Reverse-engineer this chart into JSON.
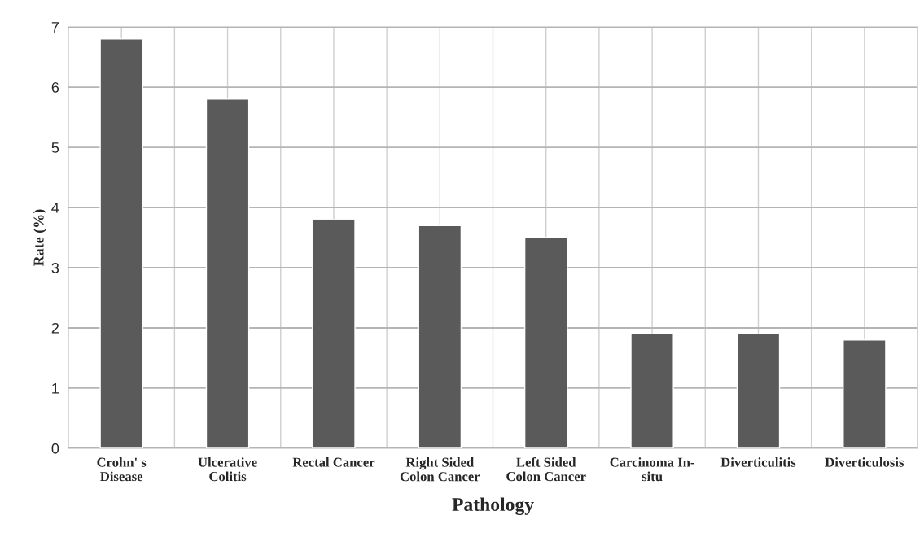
{
  "chart_data": {
    "type": "bar",
    "xlabel": "Pathology",
    "ylabel": "Rate (%)",
    "categories": [
      "Crohn' s\nDisease",
      "Ulcerative\nColitis",
      "Rectal Cancer",
      "Right Sided\nColon Cancer",
      "Left Sided\nColon Cancer",
      "Carcinoma In-\nsitu",
      "Diverticulitis",
      "Diverticulosis"
    ],
    "values": [
      6.8,
      5.8,
      3.8,
      3.7,
      3.5,
      1.9,
      1.9,
      1.8
    ],
    "color": "#5a5a5a",
    "ylim": [
      0,
      7
    ],
    "yticks": [
      0,
      1,
      2,
      3,
      4,
      5,
      6,
      7
    ],
    "grid": true
  }
}
